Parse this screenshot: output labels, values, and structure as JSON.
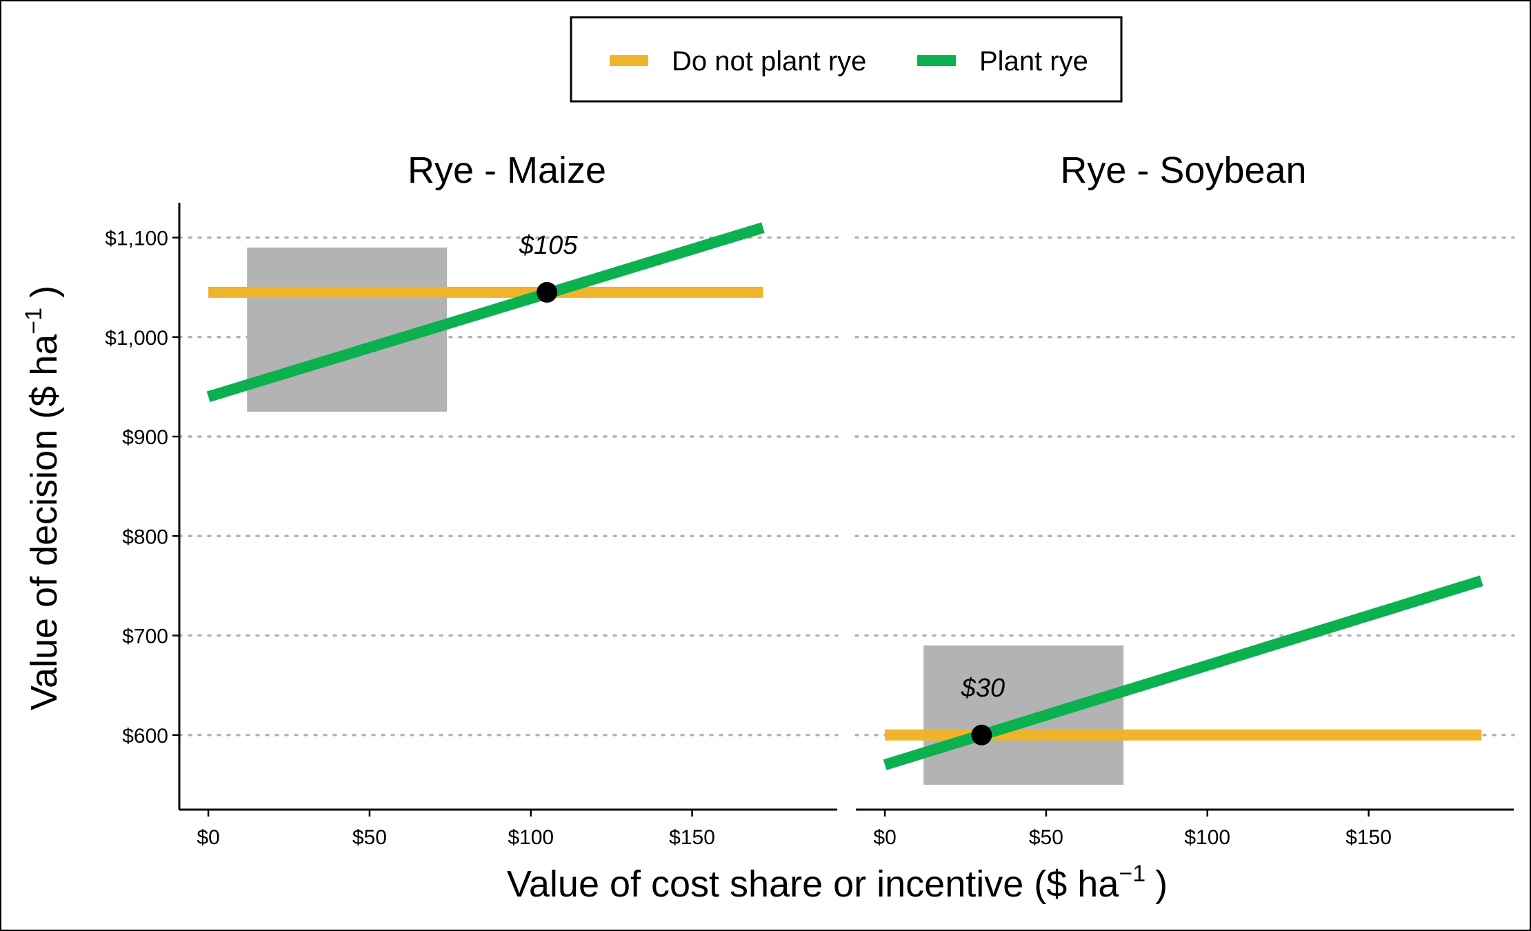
{
  "chart_data": {
    "type": "line",
    "legend": {
      "position": "top",
      "entries": [
        {
          "name": "Do not plant rye",
          "color": "#EEB42C"
        },
        {
          "name": "Plant rye",
          "color": "#0BB04F"
        }
      ]
    },
    "ylabel": "Value of decision ($  ha",
    "ylabel_sup": "−1",
    "ylabel_close": ")",
    "xlabel": "Value of cost share or incentive ($  ha",
    "xlabel_sup": "−1",
    "xlabel_close": ")",
    "ylim": [
      525,
      1135
    ],
    "y_ticks": [
      600,
      700,
      800,
      900,
      1000,
      1100
    ],
    "y_tick_labels": [
      "$600",
      "$700",
      "$800",
      "$900",
      "$1,000",
      "$1,100"
    ],
    "grid": {
      "horizontal_dotted": true,
      "vertical": false
    },
    "panels": [
      {
        "title": "Rye - Maize",
        "xlim": [
          -9,
          195
        ],
        "x_ticks": [
          0,
          50,
          100,
          150
        ],
        "x_tick_labels": [
          "$0",
          "$50",
          "$100",
          "$150"
        ],
        "series": [
          {
            "name": "Do not plant rye",
            "x": [
              0,
              172
            ],
            "y": [
              1045,
              1045
            ]
          },
          {
            "name": "Plant rye",
            "x": [
              0,
              172
            ],
            "y": [
              940,
              1110
            ]
          }
        ],
        "shaded_region": {
          "x": [
            12,
            74
          ],
          "y": [
            925,
            1090
          ]
        },
        "breakeven": {
          "x": 105,
          "y": 1045,
          "label": "$105"
        }
      },
      {
        "title": "Rye - Soybean",
        "xlim": [
          -9,
          195
        ],
        "x_ticks": [
          0,
          50,
          100,
          150
        ],
        "x_tick_labels": [
          "$0",
          "$50",
          "$100",
          "$150"
        ],
        "series": [
          {
            "name": "Do not plant rye",
            "x": [
              0,
              185
            ],
            "y": [
              600,
              600
            ]
          },
          {
            "name": "Plant rye",
            "x": [
              0,
              185
            ],
            "y": [
              570,
              755
            ]
          }
        ],
        "shaded_region": {
          "x": [
            12,
            74
          ],
          "y": [
            550,
            690
          ]
        },
        "breakeven": {
          "x": 30,
          "y": 600,
          "label": "$30"
        }
      }
    ]
  }
}
